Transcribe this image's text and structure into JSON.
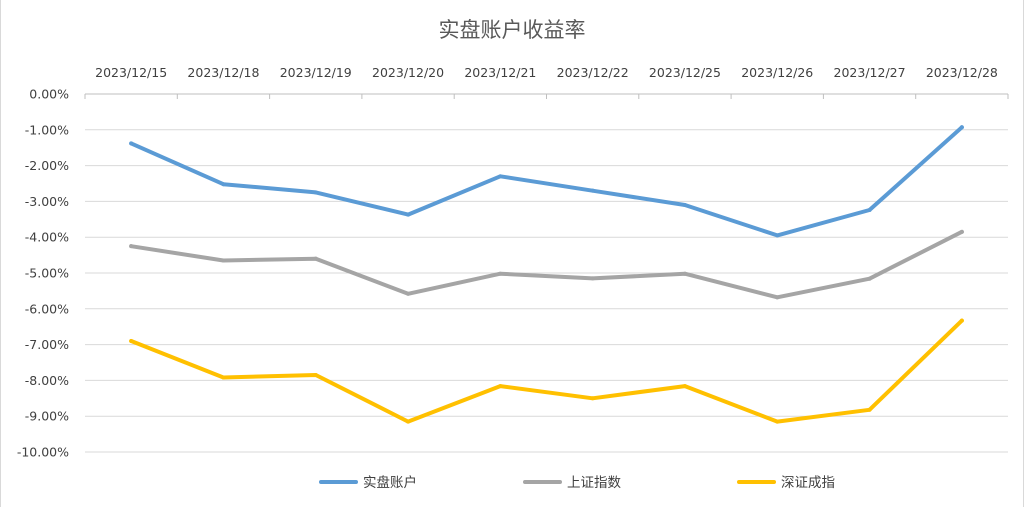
{
  "chart_data": {
    "type": "line",
    "title": "实盘账户收益率",
    "categories": [
      "2023/12/15",
      "2023/12/18",
      "2023/12/19",
      "2023/12/20",
      "2023/12/21",
      "2023/12/22",
      "2023/12/25",
      "2023/12/26",
      "2023/12/27",
      "2023/12/28"
    ],
    "y_ticks": [
      "0.00%",
      "-1.00%",
      "-2.00%",
      "-3.00%",
      "-4.00%",
      "-5.00%",
      "-6.00%",
      "-7.00%",
      "-8.00%",
      "-9.00%",
      "-10.00%"
    ],
    "ylim": [
      -10,
      0
    ],
    "grid": true,
    "legend_position": "bottom",
    "series": [
      {
        "name": "实盘账户",
        "color": "#5B9BD5",
        "values": [
          -1.38,
          -2.52,
          -2.75,
          -3.37,
          -2.3,
          -2.7,
          -3.1,
          -3.95,
          -3.24,
          -0.93
        ]
      },
      {
        "name": "上证指数",
        "color": "#A5A5A5",
        "values": [
          -4.25,
          -4.65,
          -4.6,
          -5.58,
          -5.02,
          -5.15,
          -5.02,
          -5.68,
          -5.16,
          -3.85
        ]
      },
      {
        "name": "深证成指",
        "color": "#FFC000",
        "values": [
          -6.9,
          -7.92,
          -7.85,
          -9.15,
          -8.16,
          -8.5,
          -8.16,
          -9.15,
          -8.82,
          -6.33
        ]
      }
    ]
  }
}
